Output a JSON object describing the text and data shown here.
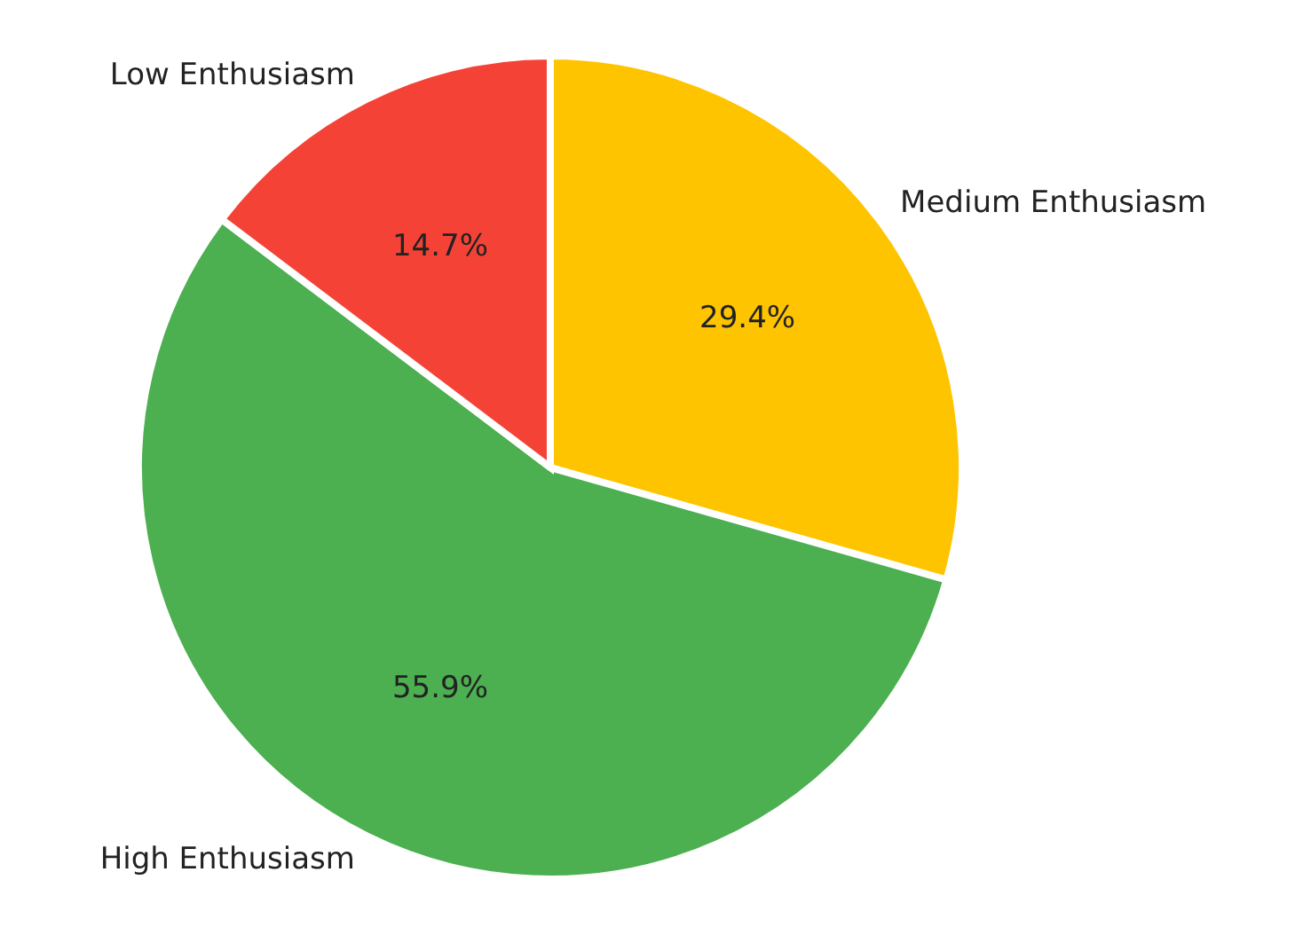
{
  "chart_data": {
    "type": "pie",
    "categories": [
      "Medium Enthusiasm",
      "High Enthusiasm",
      "Low Enthusiasm"
    ],
    "values": [
      29.4,
      55.9,
      14.7
    ],
    "colors": [
      "#ffc400",
      "#4caf50",
      "#f44336"
    ],
    "value_labels": [
      "29.4%",
      "55.9%",
      "14.7%"
    ]
  }
}
